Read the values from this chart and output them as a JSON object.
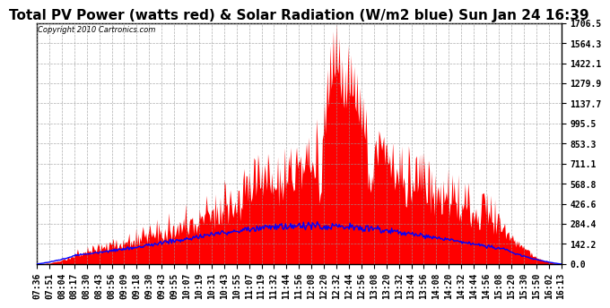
{
  "title": "Total PV Power (watts red) & Solar Radiation (W/m2 blue) Sun Jan 24 16:39",
  "copyright_text": "Copyright 2010 Cartronics.com",
  "y_max": 1706.5,
  "y_min": 0.0,
  "y_ticks": [
    0.0,
    142.2,
    284.4,
    426.6,
    568.8,
    711.1,
    853.3,
    995.5,
    1137.7,
    1279.9,
    1422.1,
    1564.3,
    1706.5
  ],
  "x_labels": [
    "07:36",
    "07:51",
    "08:04",
    "08:17",
    "08:30",
    "08:43",
    "08:56",
    "09:09",
    "09:18",
    "09:30",
    "09:43",
    "09:55",
    "10:07",
    "10:19",
    "10:31",
    "10:43",
    "10:55",
    "11:07",
    "11:19",
    "11:32",
    "11:44",
    "11:56",
    "12:08",
    "12:20",
    "12:32",
    "12:44",
    "12:56",
    "13:08",
    "13:20",
    "13:32",
    "13:44",
    "13:56",
    "14:08",
    "14:20",
    "14:32",
    "14:44",
    "14:56",
    "15:08",
    "15:20",
    "15:30",
    "15:50",
    "16:02",
    "16:13"
  ],
  "background_color": "#ffffff",
  "fill_color": "#ff0000",
  "line_color": "#0000ff",
  "grid_color": "#999999",
  "title_fontsize": 11,
  "tick_fontsize": 7,
  "dpi": 100
}
